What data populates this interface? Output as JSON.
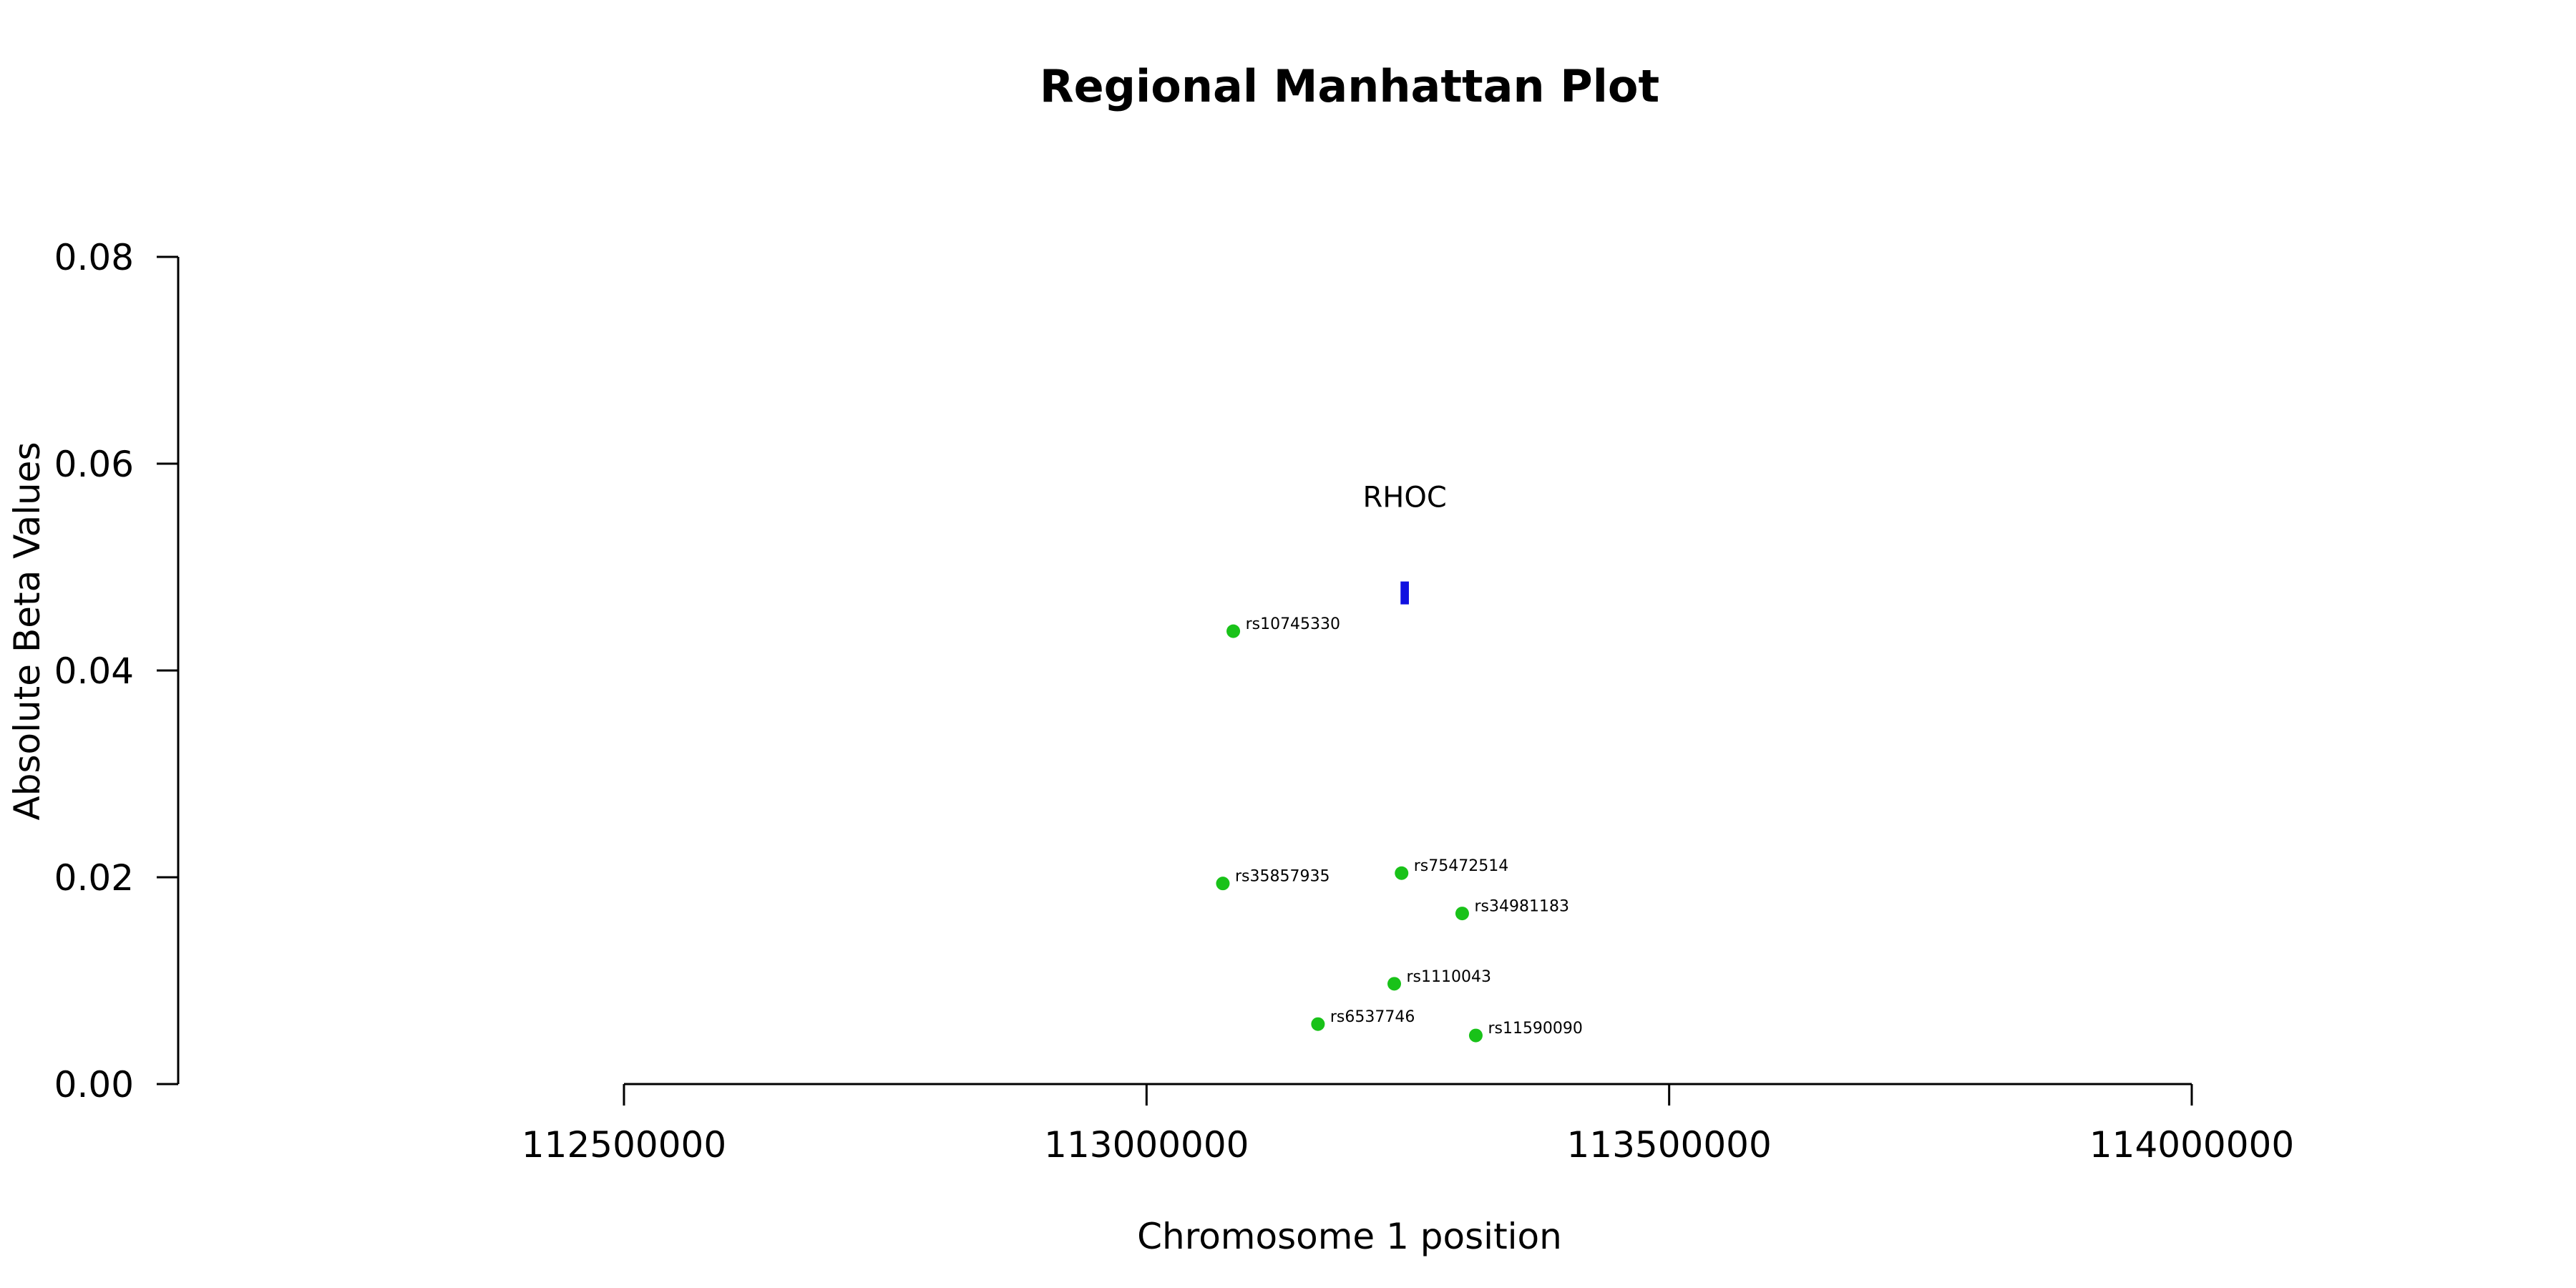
{
  "chart_data": {
    "type": "scatter",
    "title": "Regional Manhattan Plot",
    "xlabel": "Chromosome 1 position",
    "ylabel": "Absolute Beta Values",
    "xlim": [
      112500000,
      114000000
    ],
    "ylim": [
      0,
      0.08
    ],
    "x_ticks": [
      112500000,
      113000000,
      113500000,
      114000000
    ],
    "y_ticks": [
      "0.00",
      "0.02",
      "0.04",
      "0.06",
      "0.08"
    ],
    "grid": false,
    "point_color": "#19c219",
    "gene_color": "#1010e0",
    "genes": [
      {
        "name": "RHOC",
        "start": 113243000,
        "end": 113251000,
        "y": 0.0475
      }
    ],
    "points": [
      {
        "label": "rs10745330",
        "x": 113083000,
        "y": 0.0438
      },
      {
        "label": "rs35857935",
        "x": 113073000,
        "y": 0.0194
      },
      {
        "label": "rs75472514",
        "x": 113244000,
        "y": 0.0204
      },
      {
        "label": "rs34981183",
        "x": 113302000,
        "y": 0.0165
      },
      {
        "label": "rs1110043",
        "x": 113237000,
        "y": 0.0097
      },
      {
        "label": "rs6537746",
        "x": 113164000,
        "y": 0.0058
      },
      {
        "label": "rs11590090",
        "x": 113315000,
        "y": 0.0047
      }
    ]
  }
}
